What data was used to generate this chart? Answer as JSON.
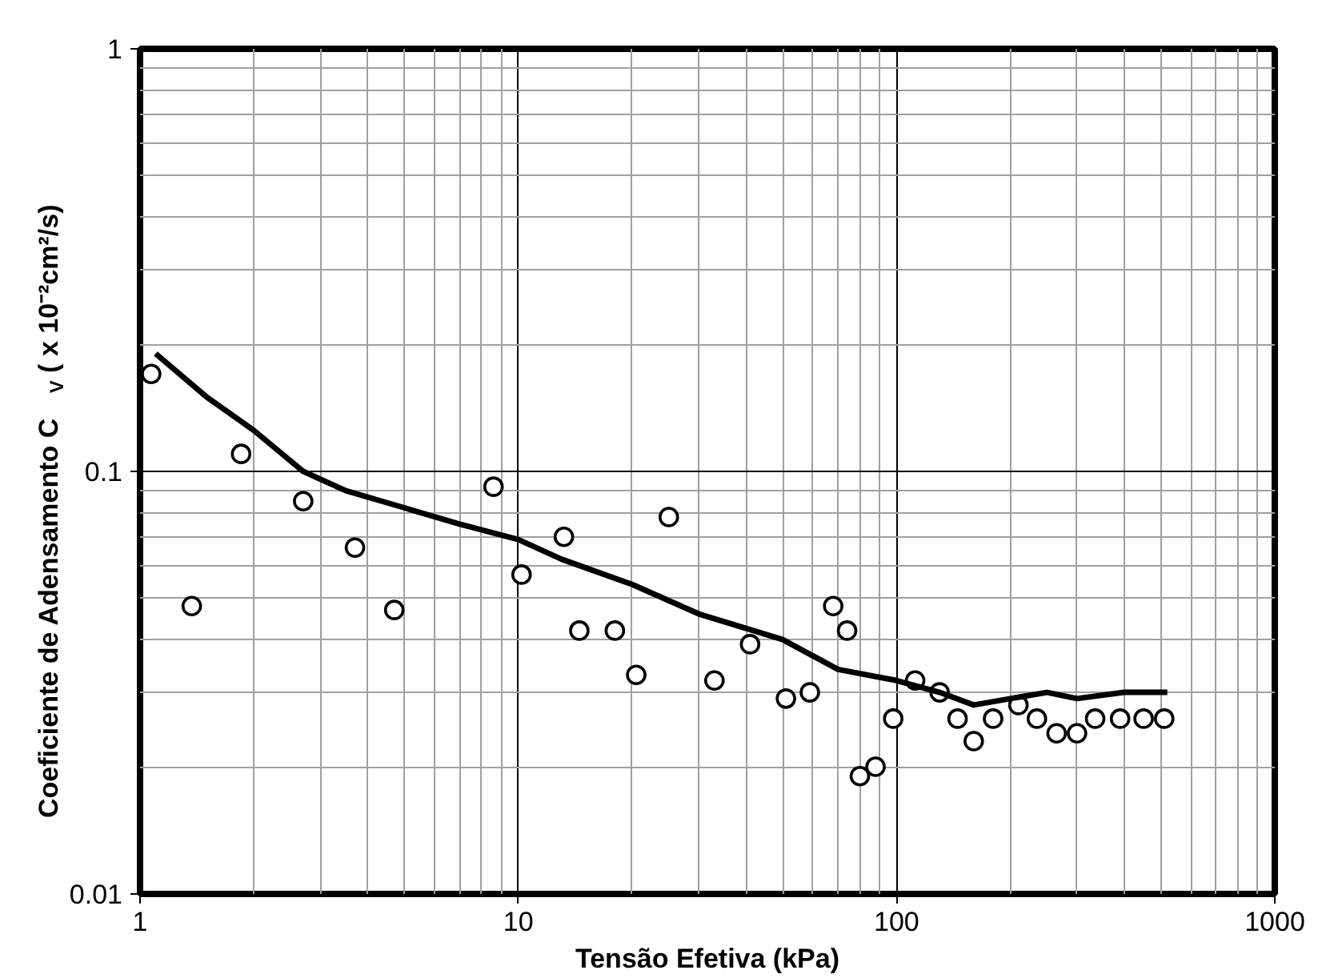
{
  "chart_data": {
    "type": "scatter",
    "xlabel": "Tensão Efetiva (kPa)",
    "ylabel": "Coeficiente de Adensamento    C$_{V}$ ( x 10⁻²cm²/s)",
    "log": "xy",
    "grid": true,
    "marker": "circle",
    "xlim": [
      1,
      1000
    ],
    "ylim": [
      0.01,
      1
    ],
    "xticks": [
      1,
      10,
      100,
      1000
    ],
    "yticks": [
      0.01,
      0.1,
      1
    ],
    "series": [
      {
        "color": "#000000",
        "x": [
          1.07,
          1.37,
          1.85,
          2.7,
          3.7,
          4.7,
          8.6,
          10.2,
          13.2,
          14.5,
          18,
          20.5,
          25,
          33,
          41,
          51,
          59,
          68,
          74,
          80,
          88,
          98,
          112,
          130,
          145,
          160,
          180,
          210,
          235,
          265,
          300,
          335,
          390,
          450,
          510
        ],
        "values": [
          0.17,
          0.048,
          0.11,
          0.085,
          0.066,
          0.047,
          0.092,
          0.057,
          0.07,
          0.042,
          0.042,
          0.033,
          0.078,
          0.032,
          0.039,
          0.029,
          0.03,
          0.048,
          0.042,
          0.019,
          0.02,
          0.026,
          0.032,
          0.03,
          0.026,
          0.023,
          0.026,
          0.028,
          0.026,
          0.024,
          0.024,
          0.026,
          0.026,
          0.026,
          0.026
        ]
      },
      {
        "type": "line",
        "marker": "none",
        "color": "#000000",
        "x": [
          1.1,
          1.5,
          2,
          2.7,
          3.5,
          5,
          7,
          10,
          13,
          20,
          30,
          50,
          70,
          100,
          130,
          160,
          200,
          250,
          300,
          400,
          520
        ],
        "values": [
          0.19,
          0.15,
          0.125,
          0.1,
          0.09,
          0.082,
          0.075,
          0.069,
          0.062,
          0.054,
          0.046,
          0.04,
          0.034,
          0.032,
          0.03,
          0.028,
          0.029,
          0.03,
          0.029,
          0.03,
          0.03
        ]
      }
    ]
  }
}
